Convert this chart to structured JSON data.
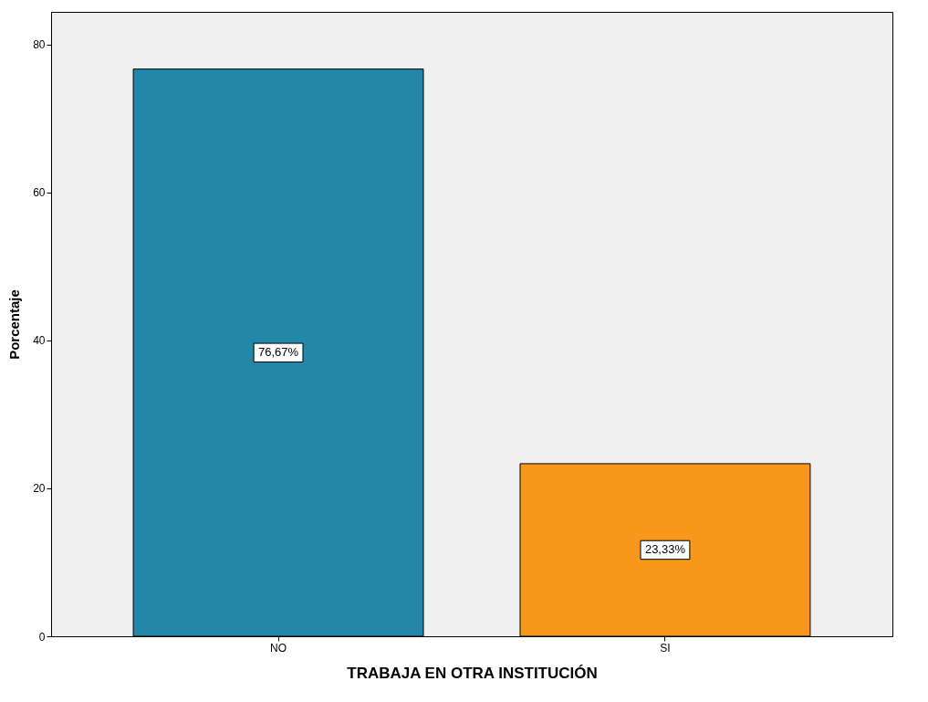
{
  "chart_data": {
    "type": "bar",
    "xlabel": "TRABAJA EN OTRA INSTITUCIÓN",
    "ylabel": "Porcentaje",
    "categories": [
      "NO",
      "SI"
    ],
    "values": [
      76.67,
      23.33
    ],
    "colors": [
      "#2387aa",
      "#f7981d"
    ],
    "value_labels": [
      "76,67%",
      "23,33%"
    ],
    "ylim": [
      0,
      84.4
    ],
    "yticks": [
      0,
      20,
      40,
      60,
      80
    ],
    "grid": false
  }
}
